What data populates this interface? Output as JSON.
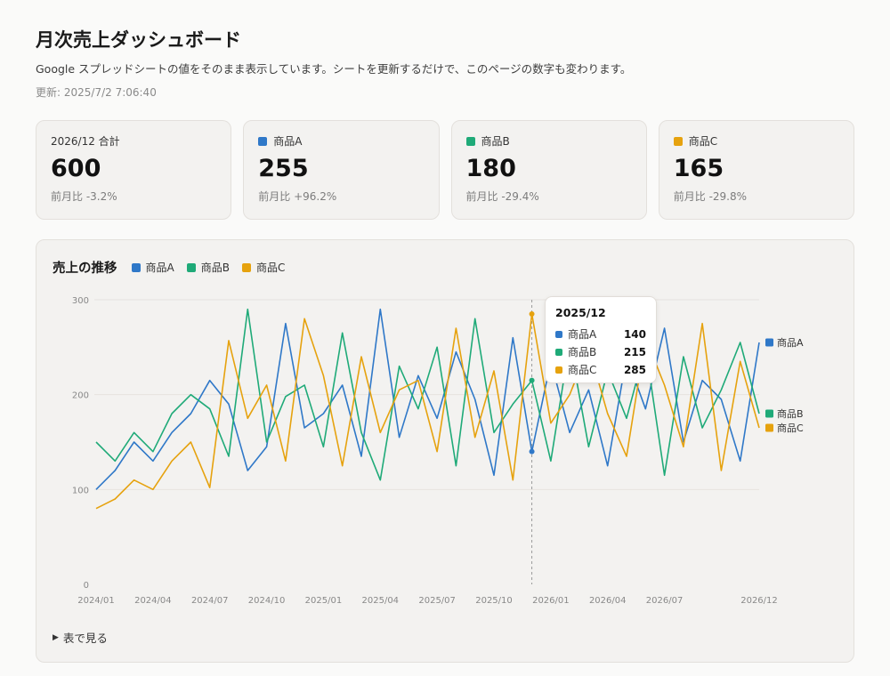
{
  "header": {
    "title": "月次売上ダッシュボード",
    "subtitle": "Google スプレッドシートの値をそのまま表示しています。シートを更新するだけで、このページの数字も変わります。",
    "updated": "更新: 2025/7/2 7:06:40"
  },
  "colors": {
    "A": "#2f78c8",
    "B": "#1faa78",
    "C": "#e6a20e"
  },
  "cards": [
    {
      "label": "2026/12 合計",
      "value": "600",
      "change": "前月比 -3.2%"
    },
    {
      "label": "商品A",
      "value": "255",
      "change": "前月比 +96.2%",
      "color": "#2f78c8"
    },
    {
      "label": "商品B",
      "value": "180",
      "change": "前月比 -29.4%",
      "color": "#1faa78"
    },
    {
      "label": "商品C",
      "value": "165",
      "change": "前月比 -29.8%",
      "color": "#e6a20e"
    }
  ],
  "chart": {
    "title": "売上の推移",
    "toggle_label": "表で見る",
    "tooltip": {
      "title": "2025/12",
      "rows": [
        {
          "name": "商品A",
          "value": "140"
        },
        {
          "name": "商品B",
          "value": "215"
        },
        {
          "name": "商品C",
          "value": "285"
        }
      ]
    }
  },
  "chart_data": {
    "type": "line",
    "ylim": [
      0,
      300
    ],
    "yticks": [
      "0",
      "100",
      "200",
      "300"
    ],
    "x": [
      "2024/01",
      "2024/02",
      "2024/03",
      "2024/04",
      "2024/05",
      "2024/06",
      "2024/07",
      "2024/08",
      "2024/09",
      "2024/10",
      "2024/11",
      "2024/12",
      "2025/01",
      "2025/02",
      "2025/03",
      "2025/04",
      "2025/05",
      "2025/06",
      "2025/07",
      "2025/08",
      "2025/09",
      "2025/10",
      "2025/11",
      "2025/12",
      "2026/01",
      "2026/02",
      "2026/03",
      "2026/04",
      "2026/05",
      "2026/06",
      "2026/07",
      "2026/08",
      "2026/09",
      "2026/10",
      "2026/11",
      "2026/12"
    ],
    "xtick_labels": [
      "2024/01",
      "2024/04",
      "2024/07",
      "2024/10",
      "2025/01",
      "2025/04",
      "2025/07",
      "2025/10",
      "2026/01",
      "2026/04",
      "2026/07",
      "2026/12"
    ],
    "grid": true,
    "legend": "top-left",
    "series": [
      {
        "name": "商品A",
        "key": "A",
        "values": [
          100,
          120,
          150,
          130,
          160,
          180,
          215,
          190,
          120,
          145,
          275,
          165,
          180,
          210,
          135,
          290,
          155,
          220,
          175,
          245,
          195,
          115,
          260,
          140,
          235,
          160,
          205,
          125,
          240,
          185,
          270,
          150,
          215,
          195,
          130,
          255
        ]
      },
      {
        "name": "商品B",
        "key": "B",
        "values": [
          150,
          130,
          160,
          140,
          180,
          200,
          185,
          135,
          290,
          150,
          198,
          210,
          145,
          265,
          160,
          110,
          230,
          185,
          250,
          125,
          280,
          160,
          190,
          215,
          130,
          255,
          145,
          225,
          175,
          250,
          115,
          240,
          165,
          205,
          255,
          180
        ]
      },
      {
        "name": "商品C",
        "key": "C",
        "values": [
          80,
          90,
          110,
          100,
          130,
          150,
          102,
          257,
          175,
          210,
          130,
          280,
          220,
          125,
          240,
          160,
          205,
          215,
          140,
          270,
          155,
          225,
          110,
          285,
          170,
          200,
          250,
          180,
          135,
          260,
          210,
          145,
          275,
          120,
          235,
          165
        ]
      }
    ]
  }
}
